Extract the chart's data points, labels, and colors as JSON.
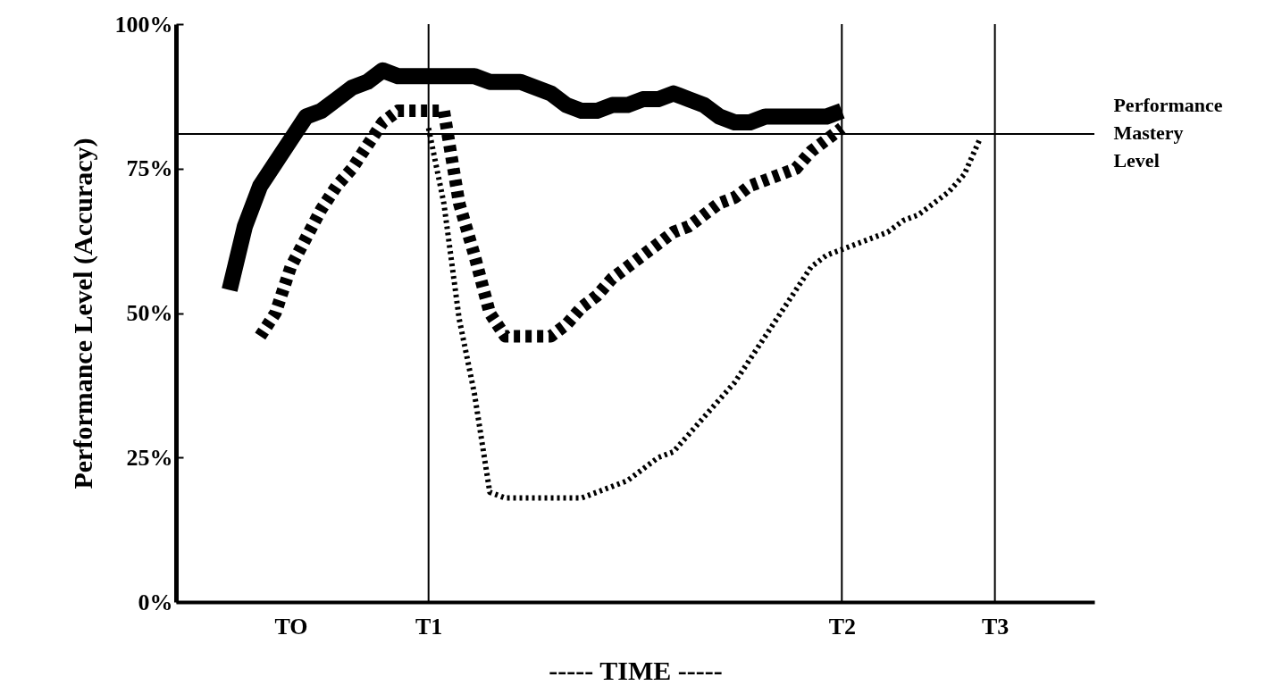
{
  "chart_data": {
    "type": "line",
    "ylabel": "Performance Level (Accuracy)",
    "xlabel": "----- TIME -----",
    "categories": [
      null,
      null,
      null,
      null,
      null,
      null,
      null,
      "TO",
      null,
      null,
      null,
      null,
      null,
      null,
      null,
      null,
      "T1",
      null,
      null,
      null,
      null,
      null,
      null,
      null,
      null,
      null,
      null,
      null,
      null,
      null,
      null,
      null,
      null,
      null,
      null,
      null,
      null,
      null,
      null,
      null,
      null,
      null,
      null,
      "T2",
      null,
      null,
      null,
      null,
      null,
      null,
      null,
      null,
      null,
      "T3",
      null,
      null,
      null,
      null,
      null,
      null
    ],
    "ylim": [
      0,
      100
    ],
    "yticks": [
      {
        "value": 0,
        "label": "0%"
      },
      {
        "value": 25,
        "label": "25%"
      },
      {
        "value": 50,
        "label": "50%"
      },
      {
        "value": 75,
        "label": "75%"
      },
      {
        "value": 100,
        "label": "100%"
      }
    ],
    "ref_lines": [
      {
        "axis": "y",
        "value": 81,
        "label": "Performance Mastery Level"
      },
      {
        "axis": "x",
        "value": "T1"
      },
      {
        "axis": "x",
        "value": "T2"
      },
      {
        "axis": "x",
        "value": "T3"
      }
    ],
    "series": [
      {
        "color": "#000000",
        "line_style": "solid",
        "values": [
          null,
          null,
          null,
          54,
          65,
          72,
          76,
          80,
          84,
          85,
          87,
          89,
          90,
          92,
          91,
          91,
          91,
          91,
          91,
          91,
          90,
          90,
          90,
          89,
          88,
          86,
          85,
          85,
          86,
          86,
          87,
          87,
          88,
          87,
          86,
          84,
          83,
          83,
          84,
          84,
          84,
          84,
          84,
          85,
          null,
          null,
          null,
          null,
          null,
          null,
          null,
          null,
          null,
          null,
          null,
          null,
          null,
          null,
          null,
          null
        ]
      },
      {
        "color": "#000000",
        "line_style": "dashed",
        "values": [
          null,
          null,
          null,
          null,
          null,
          46,
          50,
          58,
          63,
          68,
          72,
          75,
          79,
          83,
          85,
          85,
          85,
          85,
          69,
          60,
          50,
          46,
          46,
          46,
          46,
          48,
          51,
          53,
          56,
          58,
          60,
          62,
          64,
          65,
          67,
          69,
          70,
          72,
          73,
          74,
          75,
          78,
          80,
          82,
          null,
          null,
          null,
          null,
          null,
          null,
          null,
          null,
          null,
          null,
          null,
          null,
          null,
          null,
          null,
          null
        ]
      },
      {
        "color": "#000000",
        "line_style": "dotted",
        "values": [
          null,
          null,
          null,
          null,
          null,
          null,
          null,
          null,
          null,
          null,
          null,
          null,
          null,
          null,
          null,
          null,
          82,
          69,
          49,
          36,
          19,
          18,
          18,
          18,
          18,
          18,
          18,
          19,
          20,
          21,
          23,
          25,
          26,
          29,
          32,
          35,
          38,
          42,
          46,
          50,
          54,
          58,
          60,
          61,
          62,
          63,
          64,
          66,
          67,
          69,
          71,
          74,
          80,
          null,
          null,
          null,
          null,
          null,
          null,
          null
        ]
      }
    ]
  }
}
